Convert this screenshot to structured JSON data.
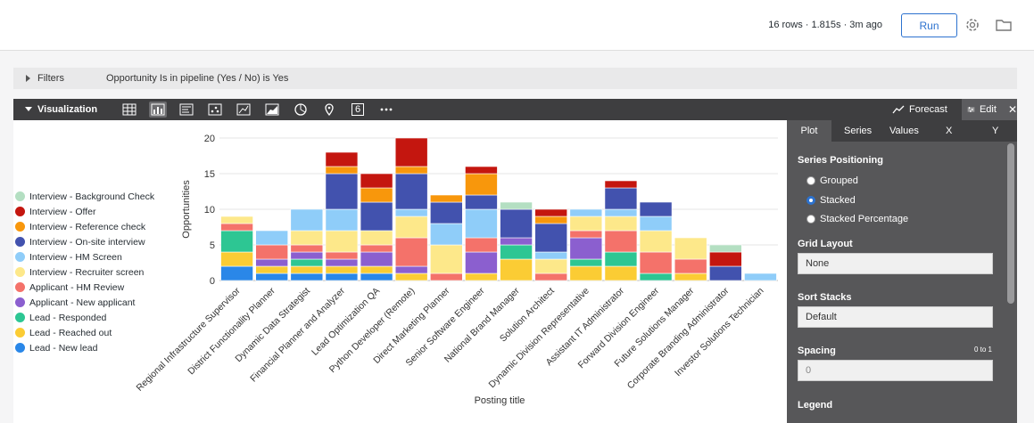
{
  "topbar": {
    "meta": "16 rows · 1.815s · 3m ago",
    "run_label": "Run"
  },
  "filters": {
    "label": "Filters",
    "text": "Opportunity Is in pipeline (Yes / No) is Yes"
  },
  "viz": {
    "label": "Visualization",
    "icons": [
      "table-icon",
      "column-chart-icon",
      "single-record-icon",
      "scatter-icon",
      "line-chart-icon",
      "area-chart-icon",
      "pie-chart-icon",
      "map-pin-icon",
      "single-value-icon",
      "more-icon"
    ],
    "single_value": "6",
    "forecast_label": "Forecast",
    "edit_label": "Edit"
  },
  "panel": {
    "tabs": [
      "Plot",
      "Series",
      "Values",
      "X",
      "Y"
    ],
    "series_positioning": "Series Positioning",
    "options": [
      "Grouped",
      "Stacked",
      "Stacked Percentage"
    ],
    "selected_option": "Stacked",
    "grid_layout": "Grid Layout",
    "grid_value": "None",
    "sort_stacks": "Sort Stacks",
    "sort_value": "Default",
    "spacing": "Spacing",
    "spacing_hint": "0 to 1",
    "spacing_placeholder": "0",
    "legend": "Legend"
  },
  "chart_data": {
    "type": "bar",
    "stacked": true,
    "xlabel": "Posting title",
    "ylabel": "Opportunities",
    "ylim": [
      0,
      20
    ],
    "yticks": [
      0,
      5,
      10,
      15,
      20
    ],
    "grid": true,
    "legend_position": "left",
    "categories": [
      "Regional Infrastructure Supervisor",
      "District Functionality Planner",
      "Dynamic Data Strategist",
      "Financial Planner and Analyzer",
      "Lead Optimization QA",
      "Python Developer (Remote)",
      "Direct Marketing Planner",
      "Senior Software Engineer",
      "National Brand Manager",
      "Solution Architect",
      "Dynamic Division Representative",
      "Assistant IT Administrator",
      "Forward Division Engineer",
      "Future Solutions Manager",
      "Corporate Branding Administrator",
      "Investor Solutions Technician"
    ],
    "series": [
      {
        "name": "Lead - New lead",
        "color": "#2a87e8",
        "values": [
          2,
          1,
          1,
          1,
          1,
          0,
          0,
          0,
          0,
          0,
          0,
          0,
          0,
          0,
          0,
          0
        ]
      },
      {
        "name": "Lead - Reached out",
        "color": "#fbcc34",
        "values": [
          2,
          1,
          1,
          1,
          1,
          1,
          0,
          1,
          3,
          0,
          2,
          2,
          0,
          1,
          0,
          0
        ]
      },
      {
        "name": "Lead - Responded",
        "color": "#2dc693",
        "values": [
          3,
          0,
          1,
          0,
          0,
          0,
          0,
          0,
          2,
          0,
          1,
          2,
          1,
          0,
          0,
          0
        ]
      },
      {
        "name": "Applicant - New applicant",
        "color": "#8b5fcf",
        "values": [
          0,
          1,
          1,
          1,
          2,
          1,
          0,
          3,
          1,
          0,
          3,
          0,
          0,
          0,
          0,
          0
        ]
      },
      {
        "name": "Applicant - HM Review",
        "color": "#f4726a",
        "values": [
          1,
          2,
          1,
          1,
          1,
          4,
          1,
          2,
          0,
          1,
          1,
          3,
          3,
          2,
          0,
          0
        ]
      },
      {
        "name": "Interview - Recruiter screen",
        "color": "#fde88a",
        "values": [
          1,
          0,
          2,
          3,
          2,
          3,
          4,
          0,
          0,
          2,
          2,
          2,
          3,
          3,
          0,
          0
        ]
      },
      {
        "name": "Interview - HM Screen",
        "color": "#8fcdf9",
        "values": [
          0,
          2,
          3,
          3,
          0,
          1,
          3,
          4,
          0,
          1,
          1,
          1,
          2,
          0,
          0,
          1
        ]
      },
      {
        "name": "Interview - On-site interview",
        "color": "#4252ae",
        "values": [
          0,
          0,
          0,
          5,
          4,
          5,
          3,
          2,
          4,
          4,
          0,
          3,
          2,
          0,
          2,
          0
        ]
      },
      {
        "name": "Interview - Reference check",
        "color": "#f8970c",
        "values": [
          0,
          0,
          0,
          1,
          2,
          1,
          1,
          3,
          0,
          1,
          0,
          0,
          0,
          0,
          0,
          0
        ]
      },
      {
        "name": "Interview - Offer",
        "color": "#c4160f",
        "values": [
          0,
          0,
          0,
          2,
          2,
          4,
          0,
          1,
          0,
          1,
          0,
          1,
          0,
          0,
          2,
          0
        ]
      },
      {
        "name": "Interview - Background Check",
        "color": "#b4dfc2",
        "values": [
          0,
          0,
          0,
          0,
          0,
          0,
          0,
          0,
          1,
          0,
          0,
          0,
          0,
          0,
          1,
          0
        ]
      }
    ]
  }
}
